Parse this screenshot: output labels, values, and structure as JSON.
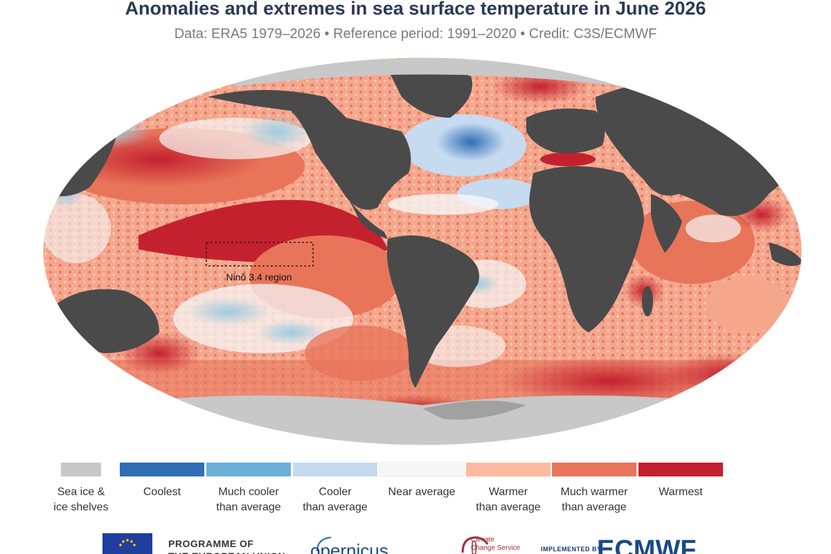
{
  "header": {
    "title": "Anomalies and extremes in sea surface temperature in June 2026",
    "subtitle": "Data: ERA5 1979–2026 • Reference period: 1991–2020 • Credit: C3S/ECMWF"
  },
  "map": {
    "region_label": "Ninõ 3.4 region",
    "colors": {
      "land": "#4a4a4a",
      "ice": "#c8c8c8",
      "coolest": "#2f6eb5",
      "much_cooler": "#6baed6",
      "cooler": "#c6dbef",
      "near": "#f7f7f7",
      "warmer": "#fcbba1",
      "much_warmer": "#e8755a",
      "warmest": "#c4212e"
    }
  },
  "legend": {
    "items": [
      {
        "label": "Sea ice &\nice shelves",
        "color": "#c8c8c8"
      },
      {
        "label": "Coolest",
        "color": "#2f6eb5"
      },
      {
        "label": "Much cooler\nthan average",
        "color": "#6baed6"
      },
      {
        "label": "Cooler\nthan average",
        "color": "#c6dbef"
      },
      {
        "label": "Near average",
        "color": "#f7f7f7"
      },
      {
        "label": "Warmer\nthan average",
        "color": "#fcbba1"
      },
      {
        "label": "Much warmer\nthan average",
        "color": "#e8755a"
      },
      {
        "label": "Warmest",
        "color": "#c4212e"
      }
    ]
  },
  "logos": {
    "eu_text": "PROGRAMME OF\nTHE EUROPEAN UNION",
    "copernicus": "opernicus",
    "c3s_text": "Climate\nChange Service",
    "implemented_by": "IMPLEMENTED BY",
    "ecmwf": "ECMWF"
  }
}
